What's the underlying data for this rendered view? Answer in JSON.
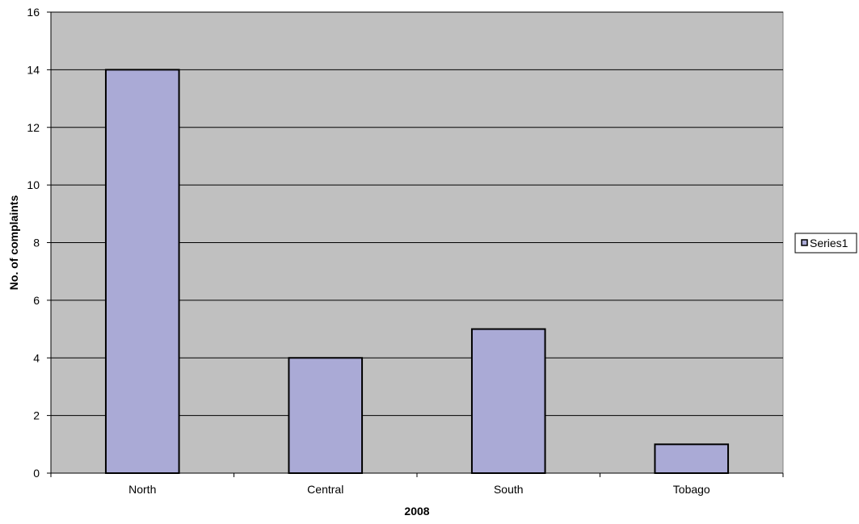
{
  "colors": {
    "plot_background": "#c0c0c0",
    "bar_fill": "#aaaad6",
    "bar_stroke": "#000000",
    "gridline": "#000000",
    "page_background": "#ffffff"
  },
  "chart_data": {
    "type": "bar",
    "title": "",
    "xlabel": "2008",
    "ylabel": "No. of complaints",
    "categories": [
      "North",
      "Central",
      "South",
      "Tobago"
    ],
    "series": [
      {
        "name": "Series1",
        "values": [
          14,
          4,
          5,
          1
        ]
      }
    ],
    "ylim": [
      0,
      16
    ],
    "yticks": [
      0,
      2,
      4,
      6,
      8,
      10,
      12,
      14,
      16
    ],
    "grid": true,
    "legend_position": "right"
  }
}
